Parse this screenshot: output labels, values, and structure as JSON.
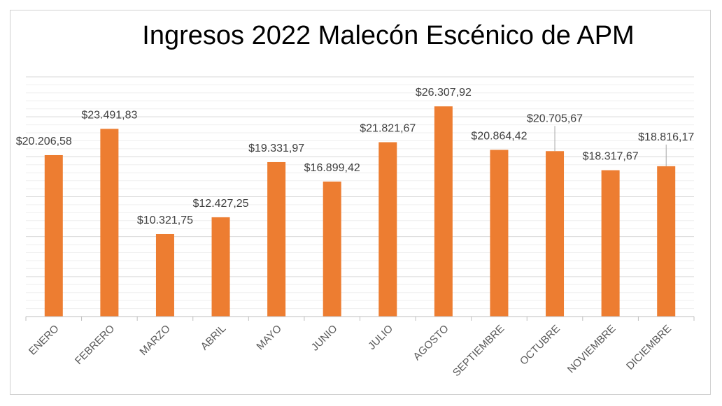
{
  "chart_data": {
    "type": "bar",
    "title": "Ingresos 2022 Malecón Escénico de APM",
    "xlabel": "",
    "ylabel": "",
    "ylim": [
      0,
      30000
    ],
    "grid": true,
    "legend": "none",
    "bar_color": "#ED7D31",
    "categories": [
      "ENERO",
      "FEBRERO",
      "MARZO",
      "ABRIL",
      "MAYO",
      "JUNIO",
      "JULIO",
      "AGOSTO",
      "SEPTIEMBRE",
      "OCTUBRE",
      "NOVIEMBRE",
      "DICIEMBRE"
    ],
    "values": [
      20206.58,
      23491.83,
      10321.75,
      12427.25,
      19331.97,
      16899.42,
      21821.67,
      26307.92,
      20864.42,
      20705.67,
      18317.67,
      18816.17
    ],
    "data_labels": [
      "$20.206,58",
      "$23.491,83",
      "$10.321,75",
      "$12.427,25",
      "$19.331,97",
      "$16.899,42",
      "$21.821,67",
      "$26.307,92",
      "$20.864,42",
      "$20.705,67",
      "$18.317,67",
      "$18.816,17"
    ]
  }
}
